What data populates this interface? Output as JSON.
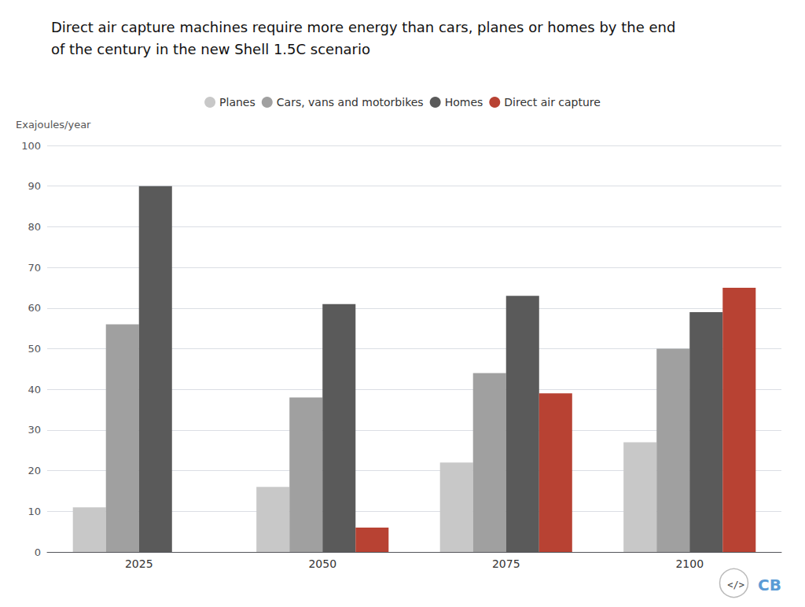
{
  "chart_data": {
    "type": "bar",
    "title": "Direct air capture machines require more energy than cars, planes or homes by the end\nof the century in the new Shell 1.5C scenario",
    "ylabel": "Exajoules/year",
    "categories": [
      "2025",
      "2050",
      "2075",
      "2100"
    ],
    "series": [
      {
        "name": "Planes",
        "color": "#c8c8c8",
        "values": [
          11,
          16,
          22,
          27
        ]
      },
      {
        "name": "Cars, vans and motorbikes",
        "color": "#a0a0a0",
        "values": [
          56,
          38,
          44,
          50
        ]
      },
      {
        "name": "Homes",
        "color": "#5a5a5a",
        "values": [
          90,
          61,
          63,
          59
        ]
      },
      {
        "name": "Direct air capture",
        "color": "#b84233",
        "values": [
          null,
          6,
          39,
          65
        ]
      }
    ],
    "ylim": [
      0,
      100
    ],
    "yticks": [
      0,
      10,
      20,
      30,
      40,
      50,
      60,
      70,
      80,
      90,
      100
    ],
    "grid": true,
    "legend": "top",
    "annotations": [
      "</>",
      "CB"
    ]
  }
}
